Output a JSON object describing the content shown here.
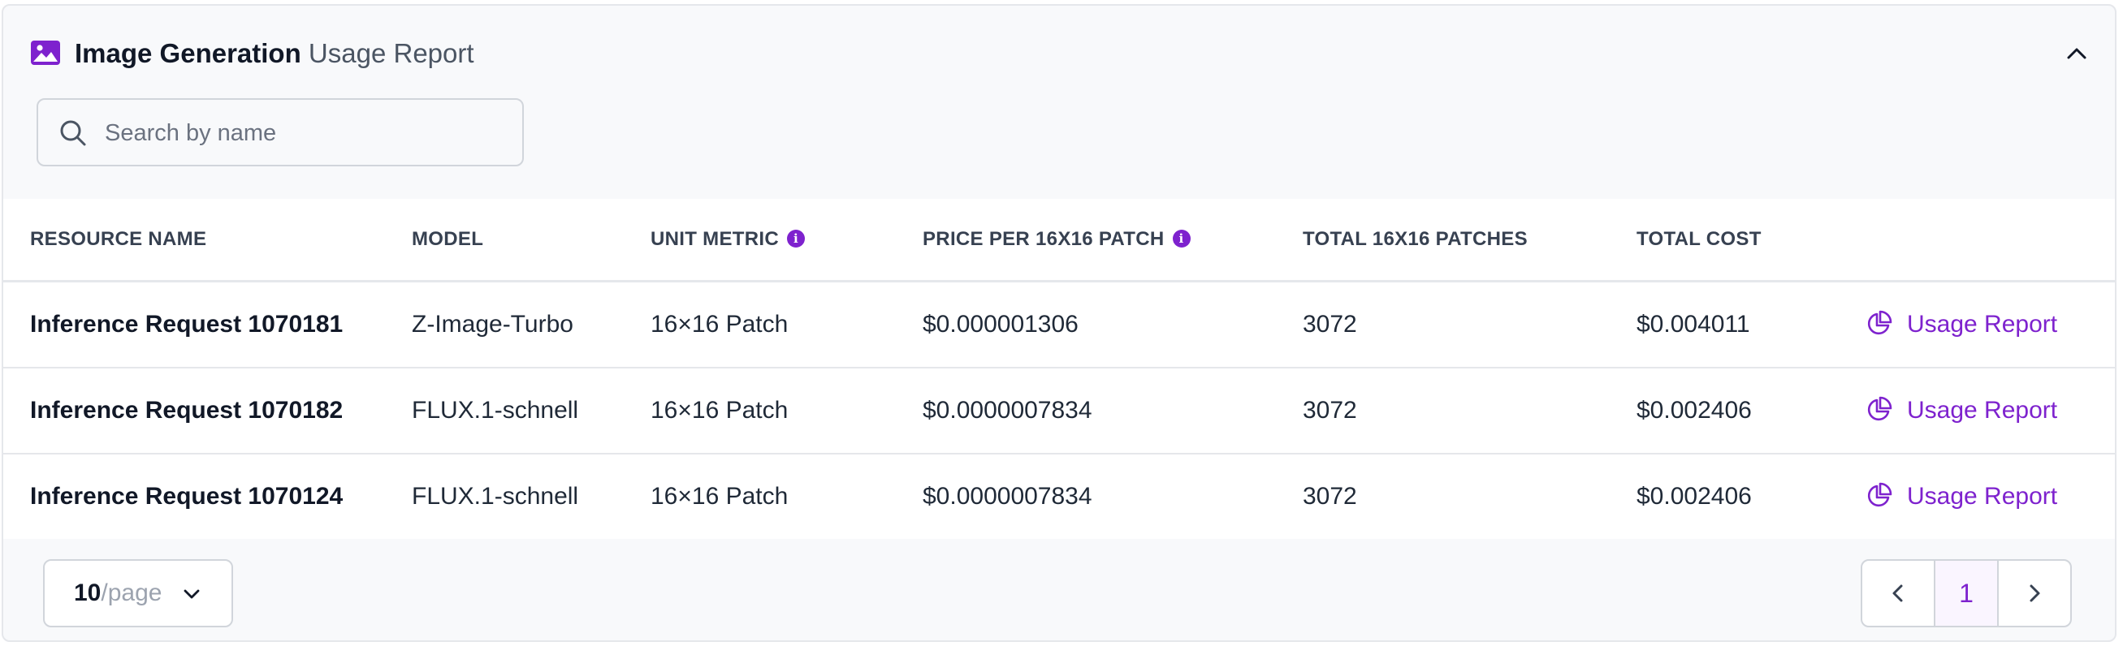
{
  "header": {
    "title_strong": "Image Generation",
    "title_light": "Usage Report",
    "icon": "image-icon",
    "collapse_icon": "chevron-up-icon"
  },
  "search": {
    "placeholder": "Search by name",
    "value": ""
  },
  "table": {
    "columns": [
      "RESOURCE NAME",
      "MODEL",
      "UNIT METRIC",
      "PRICE PER 16X16 PATCH",
      "TOTAL 16X16 PATCHES",
      "TOTAL COST"
    ],
    "info_icon": "info-icon",
    "rows": [
      {
        "name": "Inference Request 1070181",
        "model": "Z-Image-Turbo",
        "unit": "16×16 Patch",
        "price": "$0.000001306",
        "patches": "3072",
        "cost": "$0.004011",
        "action": "Usage Report"
      },
      {
        "name": "Inference Request 1070182",
        "model": "FLUX.1-schnell",
        "unit": "16×16 Patch",
        "price": "$0.0000007834",
        "patches": "3072",
        "cost": "$0.002406",
        "action": "Usage Report"
      },
      {
        "name": "Inference Request 1070124",
        "model": "FLUX.1-schnell",
        "unit": "16×16 Patch",
        "price": "$0.0000007834",
        "patches": "3072",
        "cost": "$0.002406",
        "action": "Usage Report"
      }
    ]
  },
  "footer": {
    "page_size_value": "10",
    "page_size_suffix": "/page",
    "current_page": "1"
  },
  "colors": {
    "accent": "#7e22ce",
    "background": "#f8f9fb",
    "border": "#e5e7eb"
  }
}
